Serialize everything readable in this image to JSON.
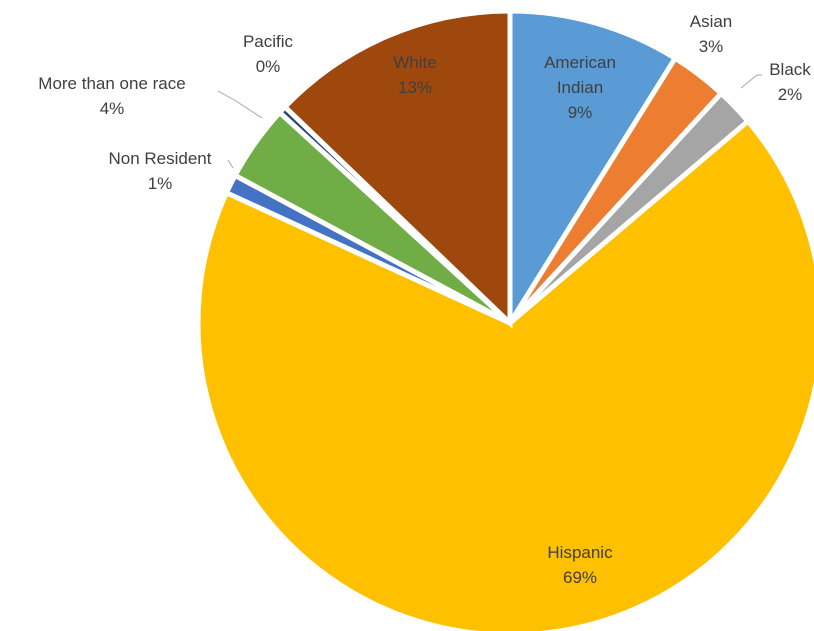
{
  "chart_data": {
    "type": "pie",
    "title": "",
    "slices": [
      {
        "label": "American Indian",
        "display": "9%",
        "value": 9,
        "color": "#5b9bd5"
      },
      {
        "label": "Asian",
        "display": "3%",
        "value": 3,
        "color": "#ed7d31"
      },
      {
        "label": "Black",
        "display": "2%",
        "value": 2,
        "color": "#a5a5a5"
      },
      {
        "label": "Hispanic",
        "display": "69%",
        "value": 69,
        "color": "#ffc000"
      },
      {
        "label": "Non Resident",
        "display": "1%",
        "value": 1,
        "color": "#4472c4"
      },
      {
        "label": "More than one race",
        "display": "4%",
        "value": 4,
        "color": "#70ad47"
      },
      {
        "label": "Pacific",
        "display": "0%",
        "value": 0.4,
        "color": "#264478"
      },
      {
        "label": "White",
        "display": "13%",
        "value": 13,
        "color": "#9e480e"
      }
    ],
    "legend": "none",
    "data_labels": "category name and percentage"
  }
}
